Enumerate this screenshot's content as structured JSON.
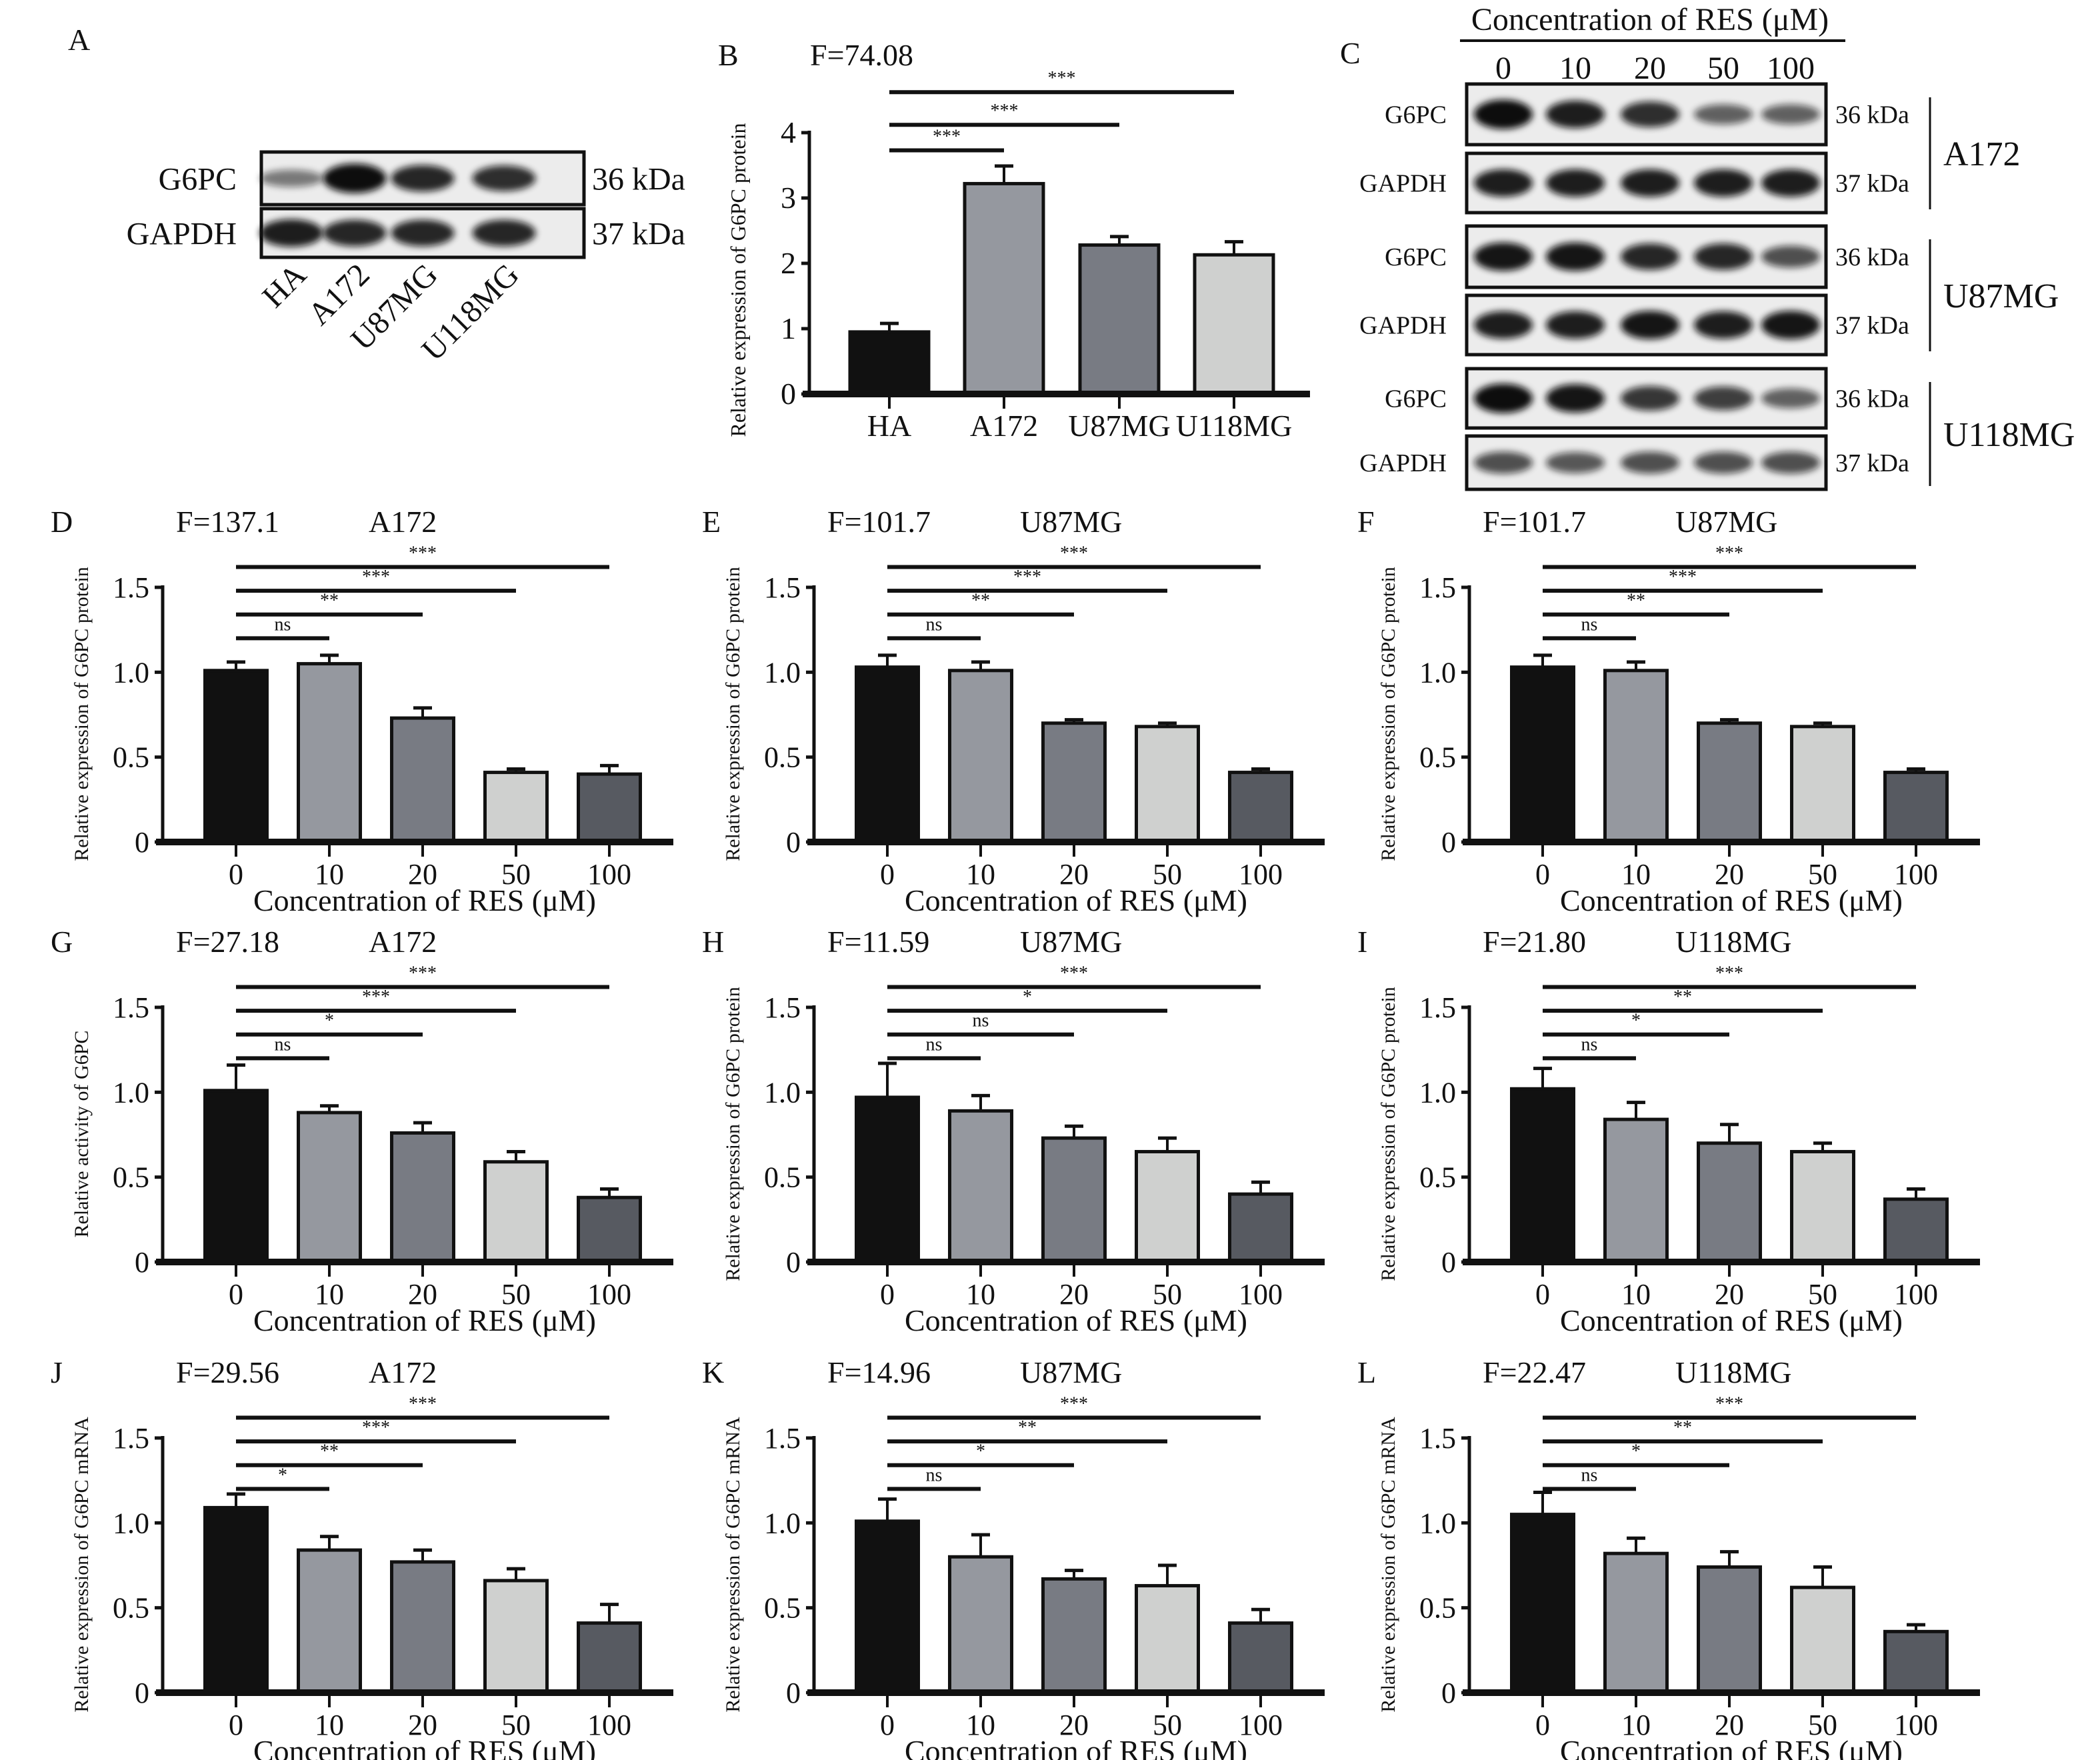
{
  "colors": {
    "bars": [
      "#111111",
      "#95989f",
      "#787b83",
      "#cfd0cf",
      "#575a61"
    ],
    "ink": "#111111"
  },
  "panel_a": {
    "letter": "A",
    "rows": [
      {
        "label": "G6PC",
        "kda": "36 kDa",
        "band_intensity": [
          0.35,
          1.0,
          0.85,
          0.8
        ]
      },
      {
        "label": "GAPDH",
        "kda": "37 kDa",
        "band_intensity": [
          0.9,
          0.85,
          0.85,
          0.85
        ]
      }
    ],
    "lanes": [
      "HA",
      "A172",
      "U87MG",
      "U118MG"
    ]
  },
  "panel_c": {
    "letter": "C",
    "header": "Concentration of RES (μM)",
    "lanes": [
      "0",
      "10",
      "20",
      "50",
      "100"
    ],
    "groups": [
      {
        "name": "A172",
        "rows": [
          {
            "label": "G6PC",
            "kda": "36 kDa",
            "band_intensity": [
              1.0,
              0.9,
              0.8,
              0.5,
              0.5
            ]
          },
          {
            "label": "GAPDH",
            "kda": "37 kDa",
            "band_intensity": [
              0.9,
              0.9,
              0.9,
              0.9,
              0.9
            ]
          }
        ]
      },
      {
        "name": "U87MG",
        "rows": [
          {
            "label": "G6PC",
            "kda": "36 kDa",
            "band_intensity": [
              0.95,
              0.95,
              0.85,
              0.85,
              0.6
            ]
          },
          {
            "label": "GAPDH",
            "kda": "37 kDa",
            "band_intensity": [
              0.9,
              0.9,
              0.95,
              0.9,
              0.95
            ]
          }
        ]
      },
      {
        "name": "U118MG",
        "rows": [
          {
            "label": "G6PC",
            "kda": "36 kDa",
            "band_intensity": [
              1.0,
              0.95,
              0.75,
              0.7,
              0.5
            ]
          },
          {
            "label": "GAPDH",
            "kda": "37 kDa",
            "band_intensity": [
              0.6,
              0.55,
              0.6,
              0.6,
              0.6
            ]
          }
        ]
      }
    ]
  },
  "chart_data": [
    {
      "id": "B",
      "type": "bar",
      "letter": "B",
      "stat": "F=74.08",
      "cell": "",
      "categories": [
        "HA",
        "A172",
        "U87MG",
        "U118MG"
      ],
      "values": [
        0.95,
        3.22,
        2.28,
        2.13
      ],
      "errors": [
        0.13,
        0.27,
        0.13,
        0.2
      ],
      "ylabel": "Relative expression of G6PC protein",
      "xlabel": "",
      "ylim": [
        0,
        4
      ],
      "yticks": [
        "0",
        "1",
        "2",
        "3",
        "4"
      ],
      "significance": [
        {
          "from": 0,
          "to": 1,
          "label": "***"
        },
        {
          "from": 0,
          "to": 2,
          "label": "***"
        },
        {
          "from": 0,
          "to": 3,
          "label": "***"
        }
      ]
    },
    {
      "id": "D",
      "type": "bar",
      "letter": "D",
      "stat": "F=137.1",
      "cell": "A172",
      "categories": [
        "0",
        "10",
        "20",
        "50",
        "100"
      ],
      "values": [
        1.01,
        1.05,
        0.73,
        0.41,
        0.4
      ],
      "errors": [
        0.05,
        0.05,
        0.06,
        0.02,
        0.05
      ],
      "ylabel": "Relative expression of G6PC protein",
      "xlabel": "Concentration of RES (μM)",
      "ylim": [
        0,
        1.5
      ],
      "yticks": [
        "0",
        "0.5",
        "1.0",
        "1.5"
      ],
      "significance": [
        {
          "from": 0,
          "to": 1,
          "label": "ns"
        },
        {
          "from": 0,
          "to": 2,
          "label": "**"
        },
        {
          "from": 0,
          "to": 3,
          "label": "***"
        },
        {
          "from": 0,
          "to": 4,
          "label": "***"
        }
      ]
    },
    {
      "id": "E",
      "type": "bar",
      "letter": "E",
      "stat": "F=101.7",
      "cell": "U87MG",
      "categories": [
        "0",
        "10",
        "20",
        "50",
        "100"
      ],
      "values": [
        1.03,
        1.01,
        0.7,
        0.68,
        0.41
      ],
      "errors": [
        0.07,
        0.05,
        0.02,
        0.02,
        0.02
      ],
      "ylabel": "Relative expression of G6PC protein",
      "xlabel": "Concentration of RES (μM)",
      "ylim": [
        0,
        1.5
      ],
      "yticks": [
        "0",
        "0.5",
        "1.0",
        "1.5"
      ],
      "significance": [
        {
          "from": 0,
          "to": 1,
          "label": "ns"
        },
        {
          "from": 0,
          "to": 2,
          "label": "**"
        },
        {
          "from": 0,
          "to": 3,
          "label": "***"
        },
        {
          "from": 0,
          "to": 4,
          "label": "***"
        }
      ]
    },
    {
      "id": "F",
      "type": "bar",
      "letter": "F",
      "stat": "F=101.7",
      "cell": "U87MG",
      "categories": [
        "0",
        "10",
        "20",
        "50",
        "100"
      ],
      "values": [
        1.03,
        1.01,
        0.7,
        0.68,
        0.41
      ],
      "errors": [
        0.07,
        0.05,
        0.02,
        0.02,
        0.02
      ],
      "ylabel": "Relative expression of G6PC protein",
      "xlabel": "Concentration of RES (μM)",
      "ylim": [
        0,
        1.5
      ],
      "yticks": [
        "0",
        "0.5",
        "1.0",
        "1.5"
      ],
      "significance": [
        {
          "from": 0,
          "to": 1,
          "label": "ns"
        },
        {
          "from": 0,
          "to": 2,
          "label": "**"
        },
        {
          "from": 0,
          "to": 3,
          "label": "***"
        },
        {
          "from": 0,
          "to": 4,
          "label": "***"
        }
      ]
    },
    {
      "id": "G",
      "type": "bar",
      "letter": "G",
      "stat": "F=27.18",
      "cell": "A172",
      "categories": [
        "0",
        "10",
        "20",
        "50",
        "100"
      ],
      "values": [
        1.01,
        0.88,
        0.76,
        0.59,
        0.38
      ],
      "errors": [
        0.15,
        0.04,
        0.06,
        0.06,
        0.05
      ],
      "ylabel": "Relative activity of G6PC",
      "xlabel": "Concentration of RES (μM)",
      "ylim": [
        0,
        1.5
      ],
      "yticks": [
        "0",
        "0.5",
        "1.0",
        "1.5"
      ],
      "significance": [
        {
          "from": 0,
          "to": 1,
          "label": "ns"
        },
        {
          "from": 0,
          "to": 2,
          "label": "*"
        },
        {
          "from": 0,
          "to": 3,
          "label": "***"
        },
        {
          "from": 0,
          "to": 4,
          "label": "***"
        }
      ]
    },
    {
      "id": "H",
      "type": "bar",
      "letter": "H",
      "stat": "F=11.59",
      "cell": "U87MG",
      "categories": [
        "0",
        "10",
        "20",
        "50",
        "100"
      ],
      "values": [
        0.97,
        0.89,
        0.73,
        0.65,
        0.4
      ],
      "errors": [
        0.2,
        0.09,
        0.07,
        0.08,
        0.07
      ],
      "ylabel": "Relative expression of G6PC protein",
      "xlabel": "Concentration of RES (μM)",
      "ylim": [
        0,
        1.5
      ],
      "yticks": [
        "0",
        "0.5",
        "1.0",
        "1.5"
      ],
      "significance": [
        {
          "from": 0,
          "to": 1,
          "label": "ns"
        },
        {
          "from": 0,
          "to": 2,
          "label": "ns"
        },
        {
          "from": 0,
          "to": 3,
          "label": "*"
        },
        {
          "from": 0,
          "to": 4,
          "label": "***"
        }
      ]
    },
    {
      "id": "I",
      "type": "bar",
      "letter": "I",
      "stat": "F=21.80",
      "cell": "U118MG",
      "categories": [
        "0",
        "10",
        "20",
        "50",
        "100"
      ],
      "values": [
        1.02,
        0.84,
        0.7,
        0.65,
        0.37
      ],
      "errors": [
        0.12,
        0.1,
        0.11,
        0.05,
        0.06
      ],
      "ylabel": "Relative expression of G6PC protein",
      "xlabel": "Concentration of RES (μM)",
      "ylim": [
        0,
        1.5
      ],
      "yticks": [
        "0",
        "0.5",
        "1.0",
        "1.5"
      ],
      "significance": [
        {
          "from": 0,
          "to": 1,
          "label": "ns"
        },
        {
          "from": 0,
          "to": 2,
          "label": "*"
        },
        {
          "from": 0,
          "to": 3,
          "label": "**"
        },
        {
          "from": 0,
          "to": 4,
          "label": "***"
        }
      ]
    },
    {
      "id": "J",
      "type": "bar",
      "letter": "J",
      "stat": "F=29.56",
      "cell": "A172",
      "categories": [
        "0",
        "10",
        "20",
        "50",
        "100"
      ],
      "values": [
        1.09,
        0.84,
        0.77,
        0.66,
        0.41
      ],
      "errors": [
        0.08,
        0.08,
        0.07,
        0.07,
        0.11
      ],
      "ylabel": "Relative expression of G6PC mRNA",
      "xlabel": "Concentration of RES (μM)",
      "ylim": [
        0,
        1.5
      ],
      "yticks": [
        "0",
        "0.5",
        "1.0",
        "1.5"
      ],
      "significance": [
        {
          "from": 0,
          "to": 1,
          "label": "*"
        },
        {
          "from": 0,
          "to": 2,
          "label": "**"
        },
        {
          "from": 0,
          "to": 3,
          "label": "***"
        },
        {
          "from": 0,
          "to": 4,
          "label": "***"
        }
      ]
    },
    {
      "id": "K",
      "type": "bar",
      "letter": "K",
      "stat": "F=14.96",
      "cell": "U87MG",
      "categories": [
        "0",
        "10",
        "20",
        "50",
        "100"
      ],
      "values": [
        1.01,
        0.8,
        0.67,
        0.63,
        0.41
      ],
      "errors": [
        0.13,
        0.13,
        0.05,
        0.12,
        0.08
      ],
      "ylabel": "Relative expression of G6PC mRNA",
      "xlabel": "Concentration of RES (μM)",
      "ylim": [
        0,
        1.5
      ],
      "yticks": [
        "0",
        "0.5",
        "1.0",
        "1.5"
      ],
      "significance": [
        {
          "from": 0,
          "to": 1,
          "label": "ns"
        },
        {
          "from": 0,
          "to": 2,
          "label": "*"
        },
        {
          "from": 0,
          "to": 3,
          "label": "**"
        },
        {
          "from": 0,
          "to": 4,
          "label": "***"
        }
      ]
    },
    {
      "id": "L",
      "type": "bar",
      "letter": "L",
      "stat": "F=22.47",
      "cell": "U118MG",
      "categories": [
        "0",
        "10",
        "20",
        "50",
        "100"
      ],
      "values": [
        1.05,
        0.82,
        0.74,
        0.62,
        0.36
      ],
      "errors": [
        0.13,
        0.09,
        0.09,
        0.12,
        0.04
      ],
      "ylabel": "Relative expression of G6PC mRNA",
      "xlabel": "Concentration of RES (μM)",
      "ylim": [
        0,
        1.5
      ],
      "yticks": [
        "0",
        "0.5",
        "1.0",
        "1.5"
      ],
      "significance": [
        {
          "from": 0,
          "to": 1,
          "label": "ns"
        },
        {
          "from": 0,
          "to": 2,
          "label": "*"
        },
        {
          "from": 0,
          "to": 3,
          "label": "**"
        },
        {
          "from": 0,
          "to": 4,
          "label": "***"
        }
      ]
    }
  ]
}
